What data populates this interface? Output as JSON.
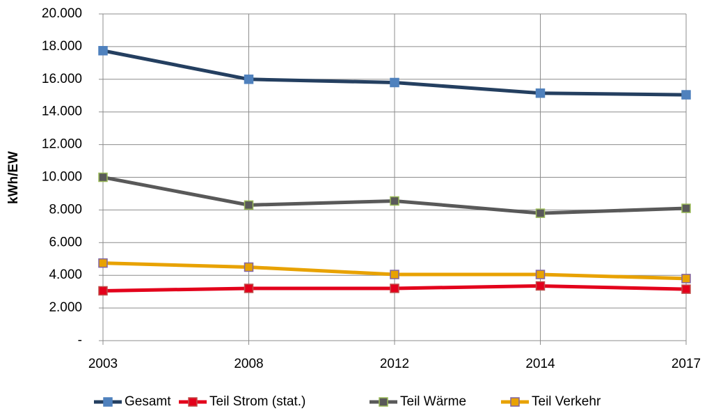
{
  "chart_data": {
    "type": "line",
    "y_label": "kWh/EW",
    "categories": [
      "2003",
      "2008",
      "2012",
      "2014",
      "2017"
    ],
    "series": [
      {
        "name": "Gesamt",
        "color": "#243f60",
        "marker_color": "#4f81bd",
        "marker_edge": "#4f81bd",
        "values": [
          17750,
          16000,
          15800,
          15150,
          15050
        ]
      },
      {
        "name": "Teil Strom (stat.)",
        "color": "#e3001b",
        "marker_color": "#e3001b",
        "marker_edge": "#c0504d",
        "values": [
          3050,
          3200,
          3200,
          3350,
          3150
        ]
      },
      {
        "name": "Teil Wärme",
        "color": "#595959",
        "marker_color": "#595959",
        "marker_edge": "#9bbb59",
        "values": [
          10000,
          8300,
          8550,
          7800,
          8100
        ]
      },
      {
        "name": "Teil Verkehr",
        "color": "#e8a202",
        "marker_color": "#e8a202",
        "marker_edge": "#8064a2",
        "values": [
          4750,
          4500,
          4050,
          4050,
          3800
        ]
      }
    ],
    "ylim": [
      0,
      20000
    ],
    "yticks": [
      {
        "value": 0,
        "label": "-"
      },
      {
        "value": 2000,
        "label": "2.000"
      },
      {
        "value": 4000,
        "label": "4.000"
      },
      {
        "value": 6000,
        "label": "6.000"
      },
      {
        "value": 8000,
        "label": "8.000"
      },
      {
        "value": 10000,
        "label": "10.000"
      },
      {
        "value": 12000,
        "label": "12.000"
      },
      {
        "value": 14000,
        "label": "14.000"
      },
      {
        "value": 16000,
        "label": "16.000"
      },
      {
        "value": 18000,
        "label": "18.000"
      },
      {
        "value": 20000,
        "label": "20.000"
      }
    ],
    "grid": true,
    "legend": "bottom"
  }
}
